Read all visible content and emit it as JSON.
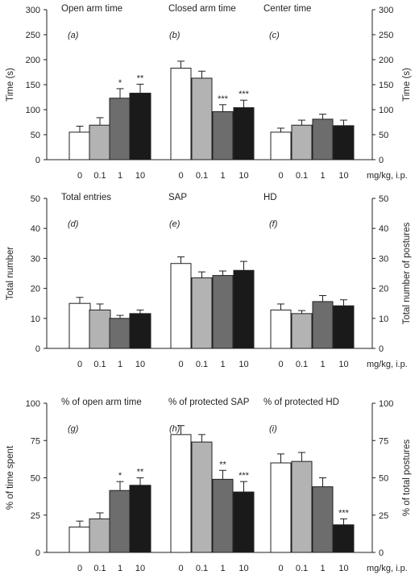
{
  "chart_data": {
    "type": "bar",
    "categories": [
      "0",
      "0.1",
      "1",
      "10"
    ],
    "bar_colors": [
      "#ffffff",
      "#b3b3b3",
      "#6d6d6d",
      "#1a1a1a"
    ],
    "unit_label": "mg/kg, i.p.",
    "rows": [
      {
        "ylabel_left": "Time (s)",
        "ylabel_right": "Time (s)",
        "ylim": [
          0,
          300
        ],
        "yticks": [
          "0",
          "50",
          "100",
          "150",
          "200",
          "250",
          "300"
        ],
        "ytick_values": [
          0,
          50,
          100,
          150,
          200,
          250,
          300
        ],
        "panels": [
          {
            "title": "Open arm time",
            "label": "(a)",
            "values": [
              55,
              69,
              123,
              133
            ],
            "errors": [
              12,
              15,
              19,
              18
            ],
            "sig": [
              "",
              "",
              "*",
              "**"
            ]
          },
          {
            "title": "Closed arm time",
            "label": "(b)",
            "values": [
              183,
              163,
              96,
              104
            ],
            "errors": [
              14,
              14,
              14,
              15
            ],
            "sig": [
              "",
              "",
              "***",
              "***"
            ]
          },
          {
            "title": "Center time",
            "label": "(c)",
            "values": [
              55,
              69,
              81,
              68
            ],
            "errors": [
              8,
              10,
              10,
              11
            ],
            "sig": [
              "",
              "",
              "",
              ""
            ]
          }
        ]
      },
      {
        "ylabel_left": "Total number",
        "ylabel_right": "Total number of postures",
        "ylim": [
          0,
          50
        ],
        "yticks": [
          "0",
          "10",
          "20",
          "30",
          "40",
          "50"
        ],
        "ytick_values": [
          0,
          10,
          20,
          30,
          40,
          50
        ],
        "panels": [
          {
            "title": "Total entries",
            "label": "(d)",
            "values": [
              15,
              12.8,
              10,
              11.6
            ],
            "errors": [
              2,
              2,
              1,
              1.2
            ],
            "sig": [
              "",
              "",
              "",
              ""
            ]
          },
          {
            "title": "SAP",
            "label": "(e)",
            "values": [
              28.3,
              23.5,
              24.3,
              26
            ],
            "errors": [
              2.2,
              2,
              1.5,
              3
            ],
            "sig": [
              "",
              "",
              "",
              ""
            ]
          },
          {
            "title": "HD",
            "label": "(f)",
            "values": [
              12.8,
              11.6,
              15.6,
              14.2
            ],
            "errors": [
              2,
              1,
              2,
              2
            ],
            "sig": [
              "",
              "",
              "",
              ""
            ]
          }
        ]
      },
      {
        "ylabel_left": "% of time spent",
        "ylabel_right": "% of total postures",
        "ylim": [
          0,
          100
        ],
        "yticks": [
          "0",
          "25",
          "50",
          "75",
          "100"
        ],
        "ytick_values": [
          0,
          25,
          50,
          75,
          100
        ],
        "panels": [
          {
            "title": "% of open arm time",
            "label": "(g)",
            "values": [
              17,
              22.5,
              41.5,
              45
            ],
            "errors": [
              4,
              4,
              6,
              5
            ],
            "sig": [
              "",
              "",
              "*",
              "**"
            ]
          },
          {
            "title": "% of protected SAP",
            "label": "(h)",
            "values": [
              79,
              74,
              49,
              40.5
            ],
            "errors": [
              6,
              5,
              6,
              7
            ],
            "sig": [
              "",
              "",
              "**",
              "***"
            ]
          },
          {
            "title": "% of protected HD",
            "label": "(i)",
            "values": [
              60,
              61,
              44,
              18.5
            ],
            "errors": [
              6,
              6,
              6,
              4
            ],
            "sig": [
              "",
              "",
              "",
              "***"
            ]
          }
        ]
      }
    ]
  }
}
